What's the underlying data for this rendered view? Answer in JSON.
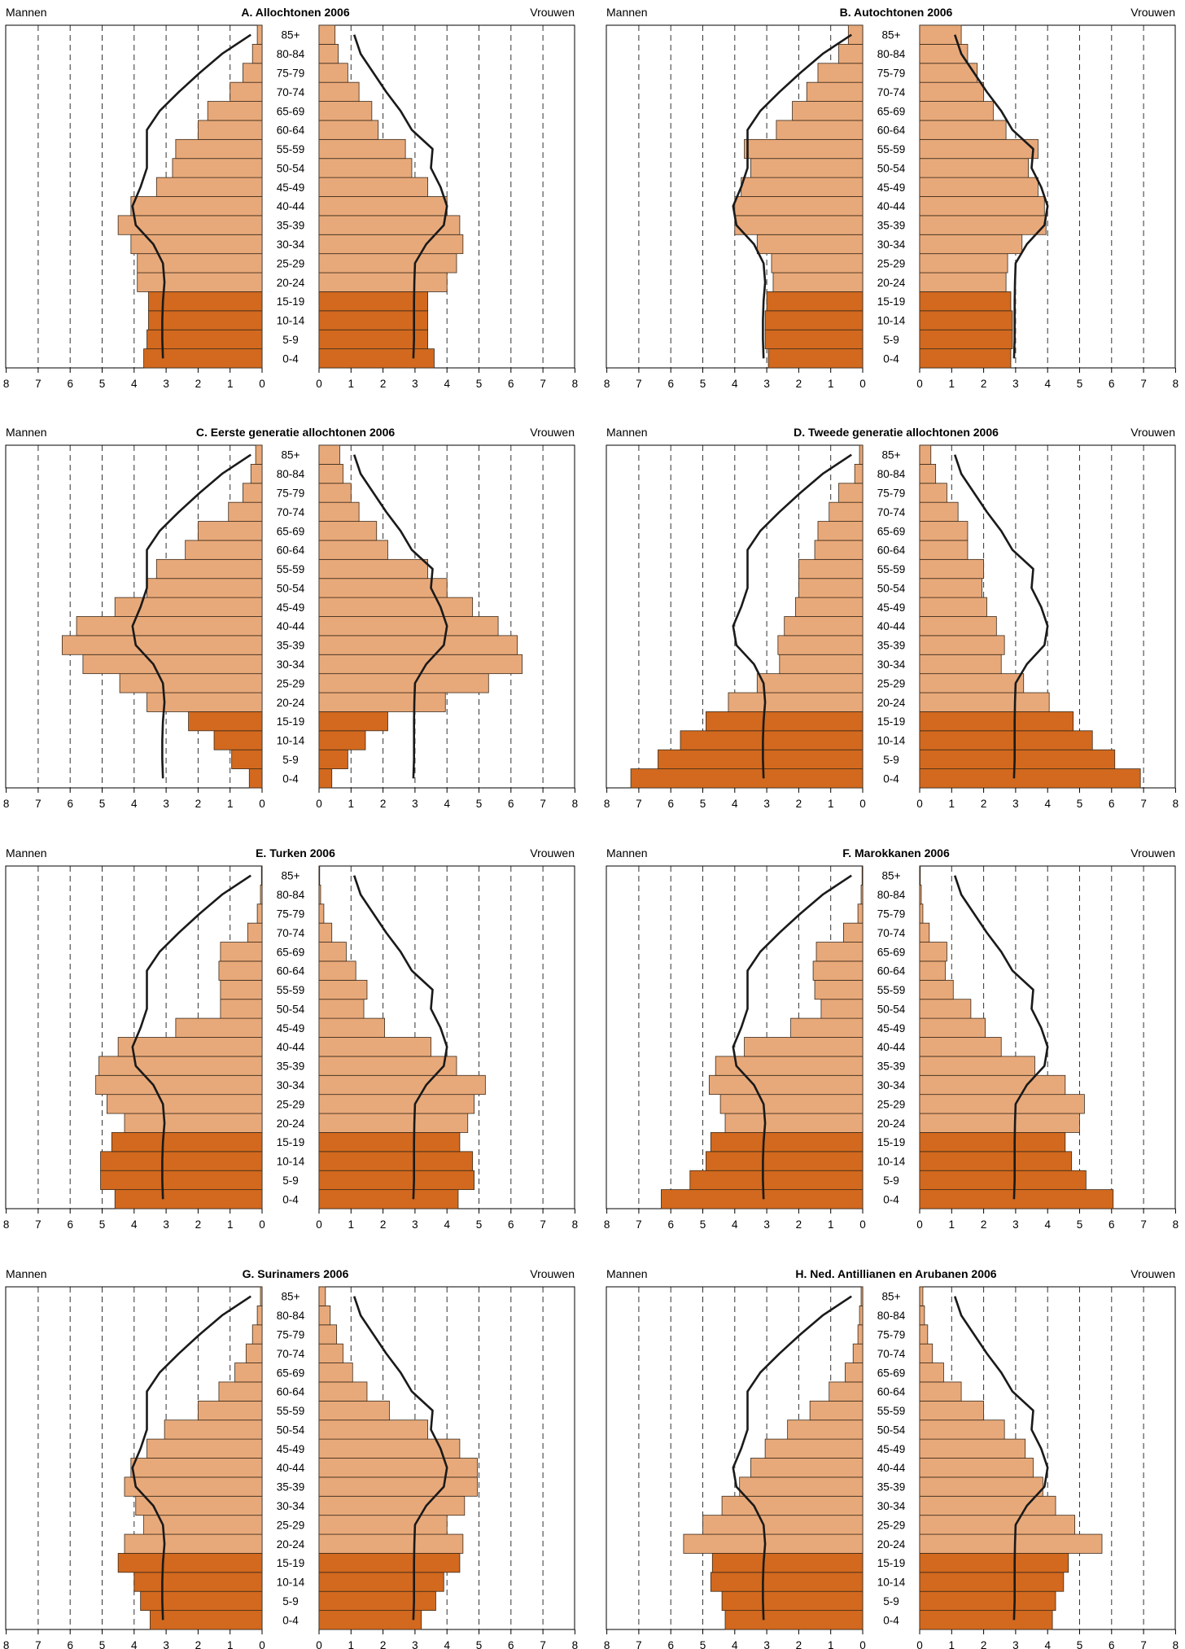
{
  "figure": {
    "age_groups": [
      "0-4",
      "5-9",
      "10-14",
      "15-19",
      "20-24",
      "25-29",
      "30-34",
      "35-39",
      "40-44",
      "45-49",
      "50-54",
      "55-59",
      "60-64",
      "65-69",
      "70-74",
      "75-79",
      "80-84",
      "85+"
    ],
    "left_label": "Mannen",
    "right_label": "Vrouwen",
    "x_ticks_men": [
      "8",
      "7",
      "6",
      "5",
      "4",
      "3",
      "2",
      "1",
      "0"
    ],
    "x_ticks_women": [
      "0",
      "1",
      "2",
      "3",
      "4",
      "5",
      "6",
      "7",
      "8"
    ],
    "colors": {
      "young": "#d2691e",
      "adult": "#e8a97a",
      "line": "#1a1a1a",
      "grid": "#333333"
    }
  },
  "chart_data": [
    {
      "type": "bar",
      "orientation": "population-pyramid",
      "title": "A. Allochtonen 2006",
      "categories": [
        "0-4",
        "5-9",
        "10-14",
        "15-19",
        "20-24",
        "25-29",
        "30-34",
        "35-39",
        "40-44",
        "45-49",
        "50-54",
        "55-59",
        "60-64",
        "65-69",
        "70-74",
        "75-79",
        "80-84",
        "85+"
      ],
      "xlim": [
        0,
        8
      ],
      "series": [
        {
          "name": "Mannen",
          "values": [
            3.7,
            3.6,
            3.55,
            3.55,
            3.9,
            3.9,
            4.1,
            4.5,
            4.1,
            3.3,
            2.8,
            2.7,
            2.0,
            1.7,
            1.0,
            0.6,
            0.3,
            0.15
          ]
        },
        {
          "name": "Vrouwen",
          "values": [
            3.6,
            3.4,
            3.4,
            3.4,
            4.0,
            4.3,
            4.5,
            4.4,
            4.0,
            3.4,
            2.9,
            2.7,
            1.85,
            1.65,
            1.25,
            0.9,
            0.6,
            0.5
          ]
        },
        {
          "name": "Mannen (lijn)",
          "values": [
            3.1,
            3.12,
            3.12,
            3.1,
            3.05,
            3.1,
            3.4,
            3.95,
            4.05,
            3.8,
            3.6,
            3.6,
            3.6,
            3.2,
            2.6,
            1.95,
            1.25,
            0.35
          ]
        },
        {
          "name": "Vrouwen (lijn)",
          "values": [
            2.95,
            2.97,
            2.97,
            2.97,
            2.98,
            3.0,
            3.35,
            3.9,
            4.0,
            3.8,
            3.5,
            3.55,
            2.9,
            2.55,
            2.1,
            1.7,
            1.3,
            1.1
          ]
        }
      ]
    },
    {
      "type": "bar",
      "orientation": "population-pyramid",
      "title": "B. Autochtonen 2006",
      "categories": [
        "0-4",
        "5-9",
        "10-14",
        "15-19",
        "20-24",
        "25-29",
        "30-34",
        "35-39",
        "40-44",
        "45-49",
        "50-54",
        "55-59",
        "60-64",
        "65-69",
        "70-74",
        "75-79",
        "80-84",
        "85+"
      ],
      "xlim": [
        0,
        8
      ],
      "series": [
        {
          "name": "Mannen",
          "values": [
            2.95,
            3.05,
            3.05,
            3.0,
            2.8,
            2.85,
            3.3,
            4.0,
            4.0,
            3.8,
            3.5,
            3.7,
            2.7,
            2.2,
            1.75,
            1.4,
            0.75,
            0.45
          ]
        },
        {
          "name": "Vrouwen",
          "values": [
            2.85,
            2.9,
            2.9,
            2.85,
            2.7,
            2.75,
            3.2,
            3.95,
            3.9,
            3.7,
            3.4,
            3.7,
            2.7,
            2.3,
            2.0,
            1.8,
            1.5,
            1.3
          ]
        },
        {
          "name": "Mannen (lijn)",
          "values": [
            3.1,
            3.12,
            3.12,
            3.1,
            3.05,
            3.1,
            3.4,
            3.95,
            4.05,
            3.8,
            3.6,
            3.6,
            3.6,
            3.2,
            2.6,
            1.95,
            1.25,
            0.35
          ]
        },
        {
          "name": "Vrouwen (lijn)",
          "values": [
            2.95,
            2.97,
            2.97,
            2.97,
            2.98,
            3.0,
            3.35,
            3.9,
            4.0,
            3.8,
            3.5,
            3.55,
            2.9,
            2.55,
            2.1,
            1.7,
            1.3,
            1.1
          ]
        }
      ]
    },
    {
      "type": "bar",
      "orientation": "population-pyramid",
      "title": "C. Eerste generatie allochtonen 2006",
      "categories": [
        "0-4",
        "5-9",
        "10-14",
        "15-19",
        "20-24",
        "25-29",
        "30-34",
        "35-39",
        "40-44",
        "45-49",
        "50-54",
        "55-59",
        "60-64",
        "65-69",
        "70-74",
        "75-79",
        "80-84",
        "85+"
      ],
      "xlim": [
        0,
        8
      ],
      "series": [
        {
          "name": "Mannen",
          "values": [
            0.4,
            0.95,
            1.5,
            2.3,
            3.6,
            4.45,
            5.6,
            6.25,
            5.8,
            4.6,
            3.6,
            3.3,
            2.4,
            2.0,
            1.05,
            0.6,
            0.35,
            0.2
          ]
        },
        {
          "name": "Vrouwen",
          "values": [
            0.4,
            0.9,
            1.45,
            2.15,
            3.95,
            5.3,
            6.35,
            6.2,
            5.6,
            4.8,
            4.0,
            3.4,
            2.15,
            1.8,
            1.25,
            1.0,
            0.75,
            0.65
          ]
        },
        {
          "name": "Mannen (lijn)",
          "values": [
            3.1,
            3.12,
            3.12,
            3.1,
            3.05,
            3.1,
            3.4,
            3.95,
            4.05,
            3.8,
            3.6,
            3.6,
            3.6,
            3.2,
            2.6,
            1.95,
            1.25,
            0.35
          ]
        },
        {
          "name": "Vrouwen (lijn)",
          "values": [
            2.95,
            2.97,
            2.97,
            2.97,
            2.98,
            3.0,
            3.35,
            3.9,
            4.0,
            3.8,
            3.5,
            3.55,
            2.9,
            2.55,
            2.1,
            1.7,
            1.3,
            1.1
          ]
        }
      ]
    },
    {
      "type": "bar",
      "orientation": "population-pyramid",
      "title": "D. Tweede generatie allochtonen 2006",
      "categories": [
        "0-4",
        "5-9",
        "10-14",
        "15-19",
        "20-24",
        "25-29",
        "30-34",
        "35-39",
        "40-44",
        "45-49",
        "50-54",
        "55-59",
        "60-64",
        "65-69",
        "70-74",
        "75-79",
        "80-84",
        "85+"
      ],
      "xlim": [
        0,
        8
      ],
      "series": [
        {
          "name": "Mannen",
          "values": [
            7.25,
            6.4,
            5.7,
            4.9,
            4.2,
            3.3,
            2.6,
            2.65,
            2.45,
            2.1,
            2.0,
            2.0,
            1.5,
            1.4,
            1.05,
            0.75,
            0.25,
            0.1
          ]
        },
        {
          "name": "Vrouwen",
          "values": [
            6.9,
            6.1,
            5.4,
            4.8,
            4.05,
            3.25,
            2.55,
            2.65,
            2.4,
            2.1,
            1.95,
            2.0,
            1.5,
            1.5,
            1.2,
            0.85,
            0.5,
            0.35
          ]
        },
        {
          "name": "Mannen (lijn)",
          "values": [
            3.1,
            3.12,
            3.12,
            3.1,
            3.05,
            3.1,
            3.4,
            3.95,
            4.05,
            3.8,
            3.6,
            3.6,
            3.6,
            3.2,
            2.6,
            1.95,
            1.25,
            0.35
          ]
        },
        {
          "name": "Vrouwen (lijn)",
          "values": [
            2.95,
            2.97,
            2.97,
            2.97,
            2.98,
            3.0,
            3.35,
            3.9,
            4.0,
            3.8,
            3.5,
            3.55,
            2.9,
            2.55,
            2.1,
            1.7,
            1.3,
            1.1
          ]
        }
      ]
    },
    {
      "type": "bar",
      "orientation": "population-pyramid",
      "title": "E. Turken 2006",
      "categories": [
        "0-4",
        "5-9",
        "10-14",
        "15-19",
        "20-24",
        "25-29",
        "30-34",
        "35-39",
        "40-44",
        "45-49",
        "50-54",
        "55-59",
        "60-64",
        "65-69",
        "70-74",
        "75-79",
        "80-84",
        "85+"
      ],
      "xlim": [
        0,
        8
      ],
      "series": [
        {
          "name": "Mannen",
          "values": [
            4.6,
            5.05,
            5.05,
            4.7,
            4.3,
            4.85,
            5.2,
            5.1,
            4.5,
            2.7,
            1.3,
            1.3,
            1.35,
            1.3,
            0.45,
            0.15,
            0.05,
            0.02
          ]
        },
        {
          "name": "Vrouwen",
          "values": [
            4.35,
            4.85,
            4.8,
            4.4,
            4.65,
            4.85,
            5.2,
            4.3,
            3.5,
            2.05,
            1.4,
            1.5,
            1.15,
            0.85,
            0.4,
            0.15,
            0.05,
            0.02
          ]
        },
        {
          "name": "Mannen (lijn)",
          "values": [
            3.1,
            3.12,
            3.12,
            3.1,
            3.05,
            3.1,
            3.4,
            3.95,
            4.05,
            3.8,
            3.6,
            3.6,
            3.6,
            3.2,
            2.6,
            1.95,
            1.25,
            0.35
          ]
        },
        {
          "name": "Vrouwen (lijn)",
          "values": [
            2.95,
            2.97,
            2.97,
            2.97,
            2.98,
            3.0,
            3.35,
            3.9,
            4.0,
            3.8,
            3.5,
            3.55,
            2.9,
            2.55,
            2.1,
            1.7,
            1.3,
            1.1
          ]
        }
      ]
    },
    {
      "type": "bar",
      "orientation": "population-pyramid",
      "title": "F. Marokkanen 2006",
      "categories": [
        "0-4",
        "5-9",
        "10-14",
        "15-19",
        "20-24",
        "25-29",
        "30-34",
        "35-39",
        "40-44",
        "45-49",
        "50-54",
        "55-59",
        "60-64",
        "65-69",
        "70-74",
        "75-79",
        "80-84",
        "85+"
      ],
      "xlim": [
        0,
        8
      ],
      "series": [
        {
          "name": "Mannen",
          "values": [
            6.3,
            5.4,
            4.9,
            4.75,
            4.3,
            4.45,
            4.8,
            4.6,
            3.7,
            2.25,
            1.3,
            1.5,
            1.55,
            1.45,
            0.6,
            0.15,
            0.05,
            0.02
          ]
        },
        {
          "name": "Vrouwen",
          "values": [
            6.05,
            5.2,
            4.75,
            4.55,
            5.0,
            5.15,
            4.55,
            3.6,
            2.55,
            2.05,
            1.6,
            1.05,
            0.8,
            0.85,
            0.3,
            0.1,
            0.05,
            0.02
          ]
        },
        {
          "name": "Mannen (lijn)",
          "values": [
            3.1,
            3.12,
            3.12,
            3.1,
            3.05,
            3.1,
            3.4,
            3.95,
            4.05,
            3.8,
            3.6,
            3.6,
            3.6,
            3.2,
            2.6,
            1.95,
            1.25,
            0.35
          ]
        },
        {
          "name": "Vrouwen (lijn)",
          "values": [
            2.95,
            2.97,
            2.97,
            2.97,
            2.98,
            3.0,
            3.35,
            3.9,
            4.0,
            3.8,
            3.5,
            3.55,
            2.9,
            2.55,
            2.1,
            1.7,
            1.3,
            1.1
          ]
        }
      ]
    },
    {
      "type": "bar",
      "orientation": "population-pyramid",
      "title": "G. Surinamers 2006",
      "categories": [
        "0-4",
        "5-9",
        "10-14",
        "15-19",
        "20-24",
        "25-29",
        "30-34",
        "35-39",
        "40-44",
        "45-49",
        "50-54",
        "55-59",
        "60-64",
        "65-69",
        "70-74",
        "75-79",
        "80-84",
        "85+"
      ],
      "xlim": [
        0,
        8
      ],
      "series": [
        {
          "name": "Mannen",
          "values": [
            3.5,
            3.8,
            4.0,
            4.5,
            4.3,
            3.7,
            3.95,
            4.3,
            4.1,
            3.6,
            3.05,
            2.0,
            1.35,
            0.85,
            0.5,
            0.3,
            0.15,
            0.05
          ]
        },
        {
          "name": "Vrouwen",
          "values": [
            3.2,
            3.65,
            3.9,
            4.4,
            4.5,
            4.0,
            4.55,
            4.95,
            4.95,
            4.4,
            3.4,
            2.2,
            1.5,
            1.05,
            0.75,
            0.55,
            0.35,
            0.2
          ]
        },
        {
          "name": "Mannen (lijn)",
          "values": [
            3.1,
            3.12,
            3.12,
            3.1,
            3.05,
            3.1,
            3.4,
            3.95,
            4.05,
            3.8,
            3.6,
            3.6,
            3.6,
            3.2,
            2.6,
            1.95,
            1.25,
            0.35
          ]
        },
        {
          "name": "Vrouwen (lijn)",
          "values": [
            2.95,
            2.97,
            2.97,
            2.97,
            2.98,
            3.0,
            3.35,
            3.9,
            4.0,
            3.8,
            3.5,
            3.55,
            2.9,
            2.55,
            2.1,
            1.7,
            1.3,
            1.1
          ]
        }
      ]
    },
    {
      "type": "bar",
      "orientation": "population-pyramid",
      "title": "H. Ned. Antillianen en Arubanen 2006",
      "categories": [
        "0-4",
        "5-9",
        "10-14",
        "15-19",
        "20-24",
        "25-29",
        "30-34",
        "35-39",
        "40-44",
        "45-49",
        "50-54",
        "55-59",
        "60-64",
        "65-69",
        "70-74",
        "75-79",
        "80-84",
        "85+"
      ],
      "xlim": [
        0,
        8
      ],
      "series": [
        {
          "name": "Mannen",
          "values": [
            4.3,
            4.4,
            4.75,
            4.7,
            5.6,
            5.0,
            4.4,
            3.85,
            3.5,
            3.05,
            2.35,
            1.65,
            1.05,
            0.55,
            0.3,
            0.15,
            0.1,
            0.05
          ]
        },
        {
          "name": "Vrouwen",
          "values": [
            4.15,
            4.25,
            4.5,
            4.65,
            5.7,
            4.85,
            4.25,
            3.85,
            3.55,
            3.3,
            2.65,
            2.0,
            1.3,
            0.75,
            0.4,
            0.25,
            0.15,
            0.1
          ]
        },
        {
          "name": "Mannen (lijn)",
          "values": [
            3.1,
            3.12,
            3.12,
            3.1,
            3.05,
            3.1,
            3.4,
            3.95,
            4.05,
            3.8,
            3.6,
            3.6,
            3.6,
            3.2,
            2.6,
            1.95,
            1.25,
            0.35
          ]
        },
        {
          "name": "Vrouwen (lijn)",
          "values": [
            2.95,
            2.97,
            2.97,
            2.97,
            2.98,
            3.0,
            3.35,
            3.9,
            4.0,
            3.8,
            3.5,
            3.55,
            2.9,
            2.55,
            2.1,
            1.7,
            1.3,
            1.1
          ]
        }
      ]
    }
  ]
}
